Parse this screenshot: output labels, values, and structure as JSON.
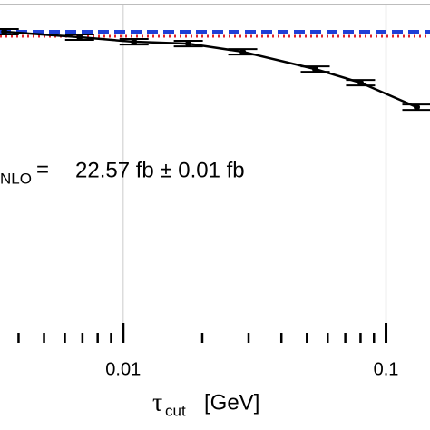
{
  "chart_data": {
    "type": "line",
    "x_label": "[GeV]",
    "x_label_symbol": "τ",
    "x_label_sub": "cut",
    "annotation_sub": "NLO",
    "annotation_eq": "=",
    "annotation": "22.57 fb ± 0.01 fb",
    "log_x": true,
    "grid": true,
    "xlim": [
      0.0034,
      0.147
    ],
    "xticks": [
      0.01,
      0.1
    ],
    "xminorticks": [
      0.004,
      0.005,
      0.006,
      0.007,
      0.008,
      0.009,
      0.02,
      0.03,
      0.04,
      0.05,
      0.06,
      0.07,
      0.08,
      0.09
    ],
    "ylim": [
      21.2,
      22.71
    ],
    "x": [
      0.00353,
      0.00683,
      0.011,
      0.0177,
      0.0285,
      0.0538,
      0.08,
      0.131
    ],
    "series": [
      {
        "color": "#000000",
        "values": [
          22.57,
          22.546,
          22.526,
          22.518,
          22.482,
          22.406,
          22.346,
          22.238
        ],
        "errors": [
          0.012,
          0.012,
          0.012,
          0.012,
          0.012,
          0.012,
          0.012,
          0.012
        ]
      }
    ],
    "reference_lines": [
      {
        "color": "#1f3fd6",
        "value": 22.57,
        "style": "dashed"
      },
      {
        "color": "#e0202a",
        "value": 22.55,
        "style": "dotted"
      }
    ]
  }
}
